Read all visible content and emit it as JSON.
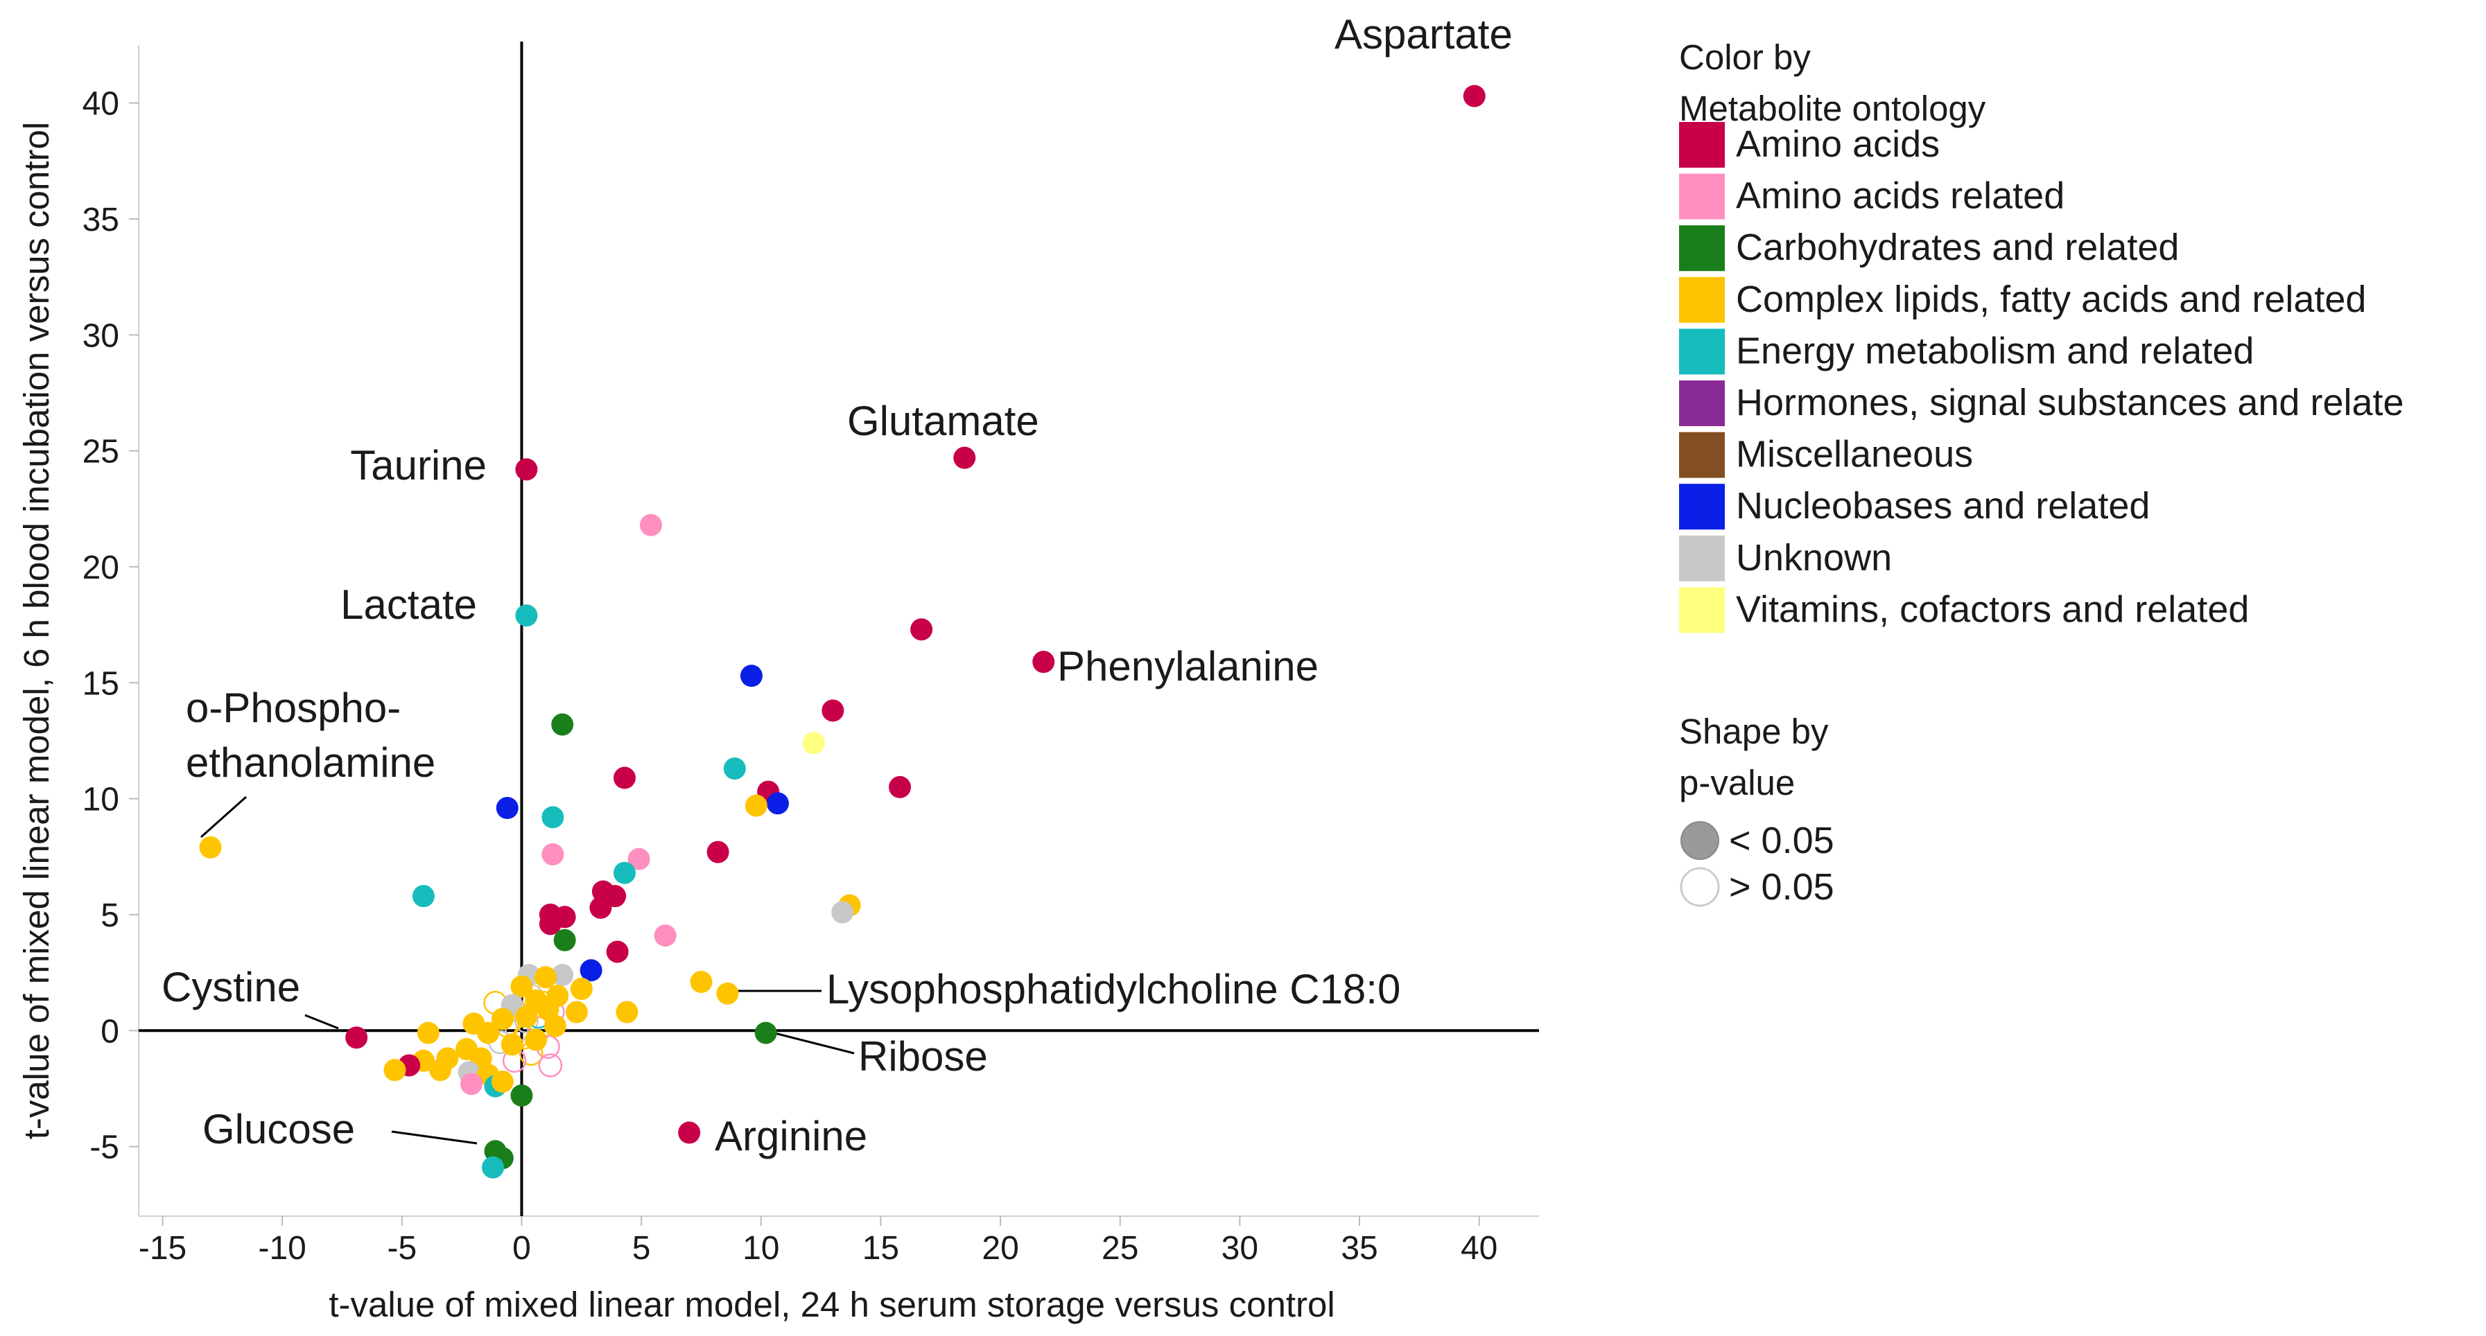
{
  "chart_data": {
    "type": "scatter",
    "xlabel": "t-value of mixed linear model, 24 h serum storage versus control",
    "ylabel": "t-value of mixed linear model, 6 h blood incubation versus control",
    "xlim": [
      -16,
      42.5
    ],
    "ylim": [
      -8,
      42.5
    ],
    "xticks": [
      -15,
      -10,
      -5,
      0,
      5,
      10,
      15,
      20,
      25,
      30,
      35,
      40
    ],
    "yticks": [
      -5,
      0,
      5,
      10,
      15,
      20,
      25,
      30,
      35,
      40
    ],
    "grid": false,
    "legend_color": {
      "title_lines": [
        "Color by",
        "Metabolite ontology"
      ],
      "items": [
        {
          "key": "aa",
          "label": "Amino acids",
          "color": "#c8004a"
        },
        {
          "key": "aar",
          "label": "Amino acids related",
          "color": "#ff8fbf"
        },
        {
          "key": "carb",
          "label": "Carbohydrates and related",
          "color": "#1a7f1a"
        },
        {
          "key": "lip",
          "label": "Complex lipids, fatty acids and related",
          "color": "#ffc400"
        },
        {
          "key": "en",
          "label": "Energy metabolism and related",
          "color": "#17bcbc"
        },
        {
          "key": "hor",
          "label": "Hormones, signal substances and relate",
          "color": "#8a2b96"
        },
        {
          "key": "misc",
          "label": "Miscellaneous",
          "color": "#834f22"
        },
        {
          "key": "nuc",
          "label": "Nucleobases and related",
          "color": "#0a1fe6"
        },
        {
          "key": "unk",
          "label": "Unknown",
          "color": "#c8c8c8"
        },
        {
          "key": "vit",
          "label": "Vitamins, cofactors and related",
          "color": "#ffff80"
        }
      ]
    },
    "legend_shape": {
      "title_lines": [
        "Shape by",
        "p-value"
      ],
      "items": [
        {
          "label": "< 0.05",
          "filled": true,
          "color": "#999999"
        },
        {
          "label": "> 0.05",
          "filled": false,
          "color": "#cccccc"
        }
      ]
    },
    "points": [
      {
        "x": 39.8,
        "y": 40.3,
        "cat": "aa",
        "sig": true,
        "label": "Aspartate"
      },
      {
        "x": 18.5,
        "y": 24.7,
        "cat": "aa",
        "sig": true,
        "label": "Glutamate"
      },
      {
        "x": 0.2,
        "y": 24.2,
        "cat": "aa",
        "sig": true,
        "label": "Taurine"
      },
      {
        "x": 0.2,
        "y": 17.9,
        "cat": "en",
        "sig": true,
        "label": "Lactate"
      },
      {
        "x": 21.8,
        "y": 15.9,
        "cat": "aa",
        "sig": true,
        "label": "Phenylalanine"
      },
      {
        "x": -13.0,
        "y": 7.9,
        "cat": "lip",
        "sig": true,
        "label": "o-Phospho-ethanolamine"
      },
      {
        "x": 8.6,
        "y": 1.6,
        "cat": "lip",
        "sig": true,
        "label": "Lysophosphatidylcholine C18:0"
      },
      {
        "x": -6.9,
        "y": -0.3,
        "cat": "aa",
        "sig": true,
        "label": "Cystine"
      },
      {
        "x": 10.2,
        "y": -0.1,
        "cat": "carb",
        "sig": true,
        "label": "Ribose"
      },
      {
        "x": 7.0,
        "y": -4.4,
        "cat": "aa",
        "sig": true,
        "label": "Arginine"
      },
      {
        "x": -1.1,
        "y": -5.2,
        "cat": "carb",
        "sig": true,
        "label": "Glucose"
      },
      {
        "x": -0.8,
        "y": -5.5,
        "cat": "carb",
        "sig": true
      },
      {
        "x": -1.2,
        "y": -5.9,
        "cat": "en",
        "sig": true
      },
      {
        "x": 5.4,
        "y": 21.8,
        "cat": "aar",
        "sig": true
      },
      {
        "x": 16.7,
        "y": 17.3,
        "cat": "aa",
        "sig": true
      },
      {
        "x": 9.6,
        "y": 15.3,
        "cat": "nuc",
        "sig": true
      },
      {
        "x": 13.0,
        "y": 13.8,
        "cat": "aa",
        "sig": true
      },
      {
        "x": 1.7,
        "y": 13.2,
        "cat": "carb",
        "sig": true
      },
      {
        "x": 12.2,
        "y": 12.4,
        "cat": "vit",
        "sig": true
      },
      {
        "x": 8.9,
        "y": 11.3,
        "cat": "en",
        "sig": true
      },
      {
        "x": 4.3,
        "y": 10.9,
        "cat": "aa",
        "sig": true
      },
      {
        "x": 15.8,
        "y": 10.5,
        "cat": "aa",
        "sig": true
      },
      {
        "x": 10.3,
        "y": 10.3,
        "cat": "aa",
        "sig": true
      },
      {
        "x": 10.7,
        "y": 9.8,
        "cat": "nuc",
        "sig": true
      },
      {
        "x": 9.8,
        "y": 9.7,
        "cat": "lip",
        "sig": true
      },
      {
        "x": -0.6,
        "y": 9.6,
        "cat": "nuc",
        "sig": true
      },
      {
        "x": 1.3,
        "y": 9.2,
        "cat": "en",
        "sig": true
      },
      {
        "x": 8.2,
        "y": 7.7,
        "cat": "aa",
        "sig": true
      },
      {
        "x": 1.3,
        "y": 7.6,
        "cat": "aar",
        "sig": true
      },
      {
        "x": 4.9,
        "y": 7.4,
        "cat": "aar",
        "sig": true
      },
      {
        "x": 4.3,
        "y": 6.8,
        "cat": "en",
        "sig": true
      },
      {
        "x": 3.4,
        "y": 6.0,
        "cat": "aa",
        "sig": true
      },
      {
        "x": 3.9,
        "y": 5.8,
        "cat": "aa",
        "sig": true
      },
      {
        "x": -4.1,
        "y": 5.8,
        "cat": "en",
        "sig": true
      },
      {
        "x": 3.3,
        "y": 5.3,
        "cat": "aa",
        "sig": true
      },
      {
        "x": 13.7,
        "y": 5.4,
        "cat": "lip",
        "sig": true
      },
      {
        "x": 13.4,
        "y": 5.1,
        "cat": "unk",
        "sig": true
      },
      {
        "x": 1.2,
        "y": 5.0,
        "cat": "aa",
        "sig": true
      },
      {
        "x": 1.8,
        "y": 4.9,
        "cat": "aa",
        "sig": true
      },
      {
        "x": 1.2,
        "y": 4.6,
        "cat": "aa",
        "sig": true
      },
      {
        "x": 6.0,
        "y": 4.1,
        "cat": "aar",
        "sig": true
      },
      {
        "x": 1.8,
        "y": 3.9,
        "cat": "carb",
        "sig": true
      },
      {
        "x": 4.0,
        "y": 3.4,
        "cat": "aa",
        "sig": true
      },
      {
        "x": 2.9,
        "y": 2.6,
        "cat": "nuc",
        "sig": true
      },
      {
        "x": 7.5,
        "y": 2.1,
        "cat": "lip",
        "sig": true
      },
      {
        "x": 4.4,
        "y": 0.8,
        "cat": "lip",
        "sig": true
      },
      {
        "x": 2.5,
        "y": 1.8,
        "cat": "lip",
        "sig": true
      },
      {
        "x": 2.3,
        "y": 0.8,
        "cat": "lip",
        "sig": true
      },
      {
        "x": 1.7,
        "y": 2.4,
        "cat": "unk",
        "sig": true
      },
      {
        "x": 0.3,
        "y": 2.4,
        "cat": "unk",
        "sig": true
      },
      {
        "x": 1.0,
        "y": 2.3,
        "cat": "lip",
        "sig": true
      },
      {
        "x": 0.0,
        "y": 1.9,
        "cat": "lip",
        "sig": true
      },
      {
        "x": 1.5,
        "y": 1.5,
        "cat": "lip",
        "sig": true
      },
      {
        "x": 0.6,
        "y": 1.3,
        "cat": "lip",
        "sig": true
      },
      {
        "x": -0.4,
        "y": 1.1,
        "cat": "unk",
        "sig": true
      },
      {
        "x": 1.1,
        "y": 0.9,
        "cat": "lip",
        "sig": true
      },
      {
        "x": 0.2,
        "y": 0.6,
        "cat": "lip",
        "sig": true
      },
      {
        "x": -0.8,
        "y": 0.5,
        "cat": "lip",
        "sig": true
      },
      {
        "x": 1.4,
        "y": 0.2,
        "cat": "lip",
        "sig": true
      },
      {
        "x": -2.0,
        "y": 0.3,
        "cat": "lip",
        "sig": true
      },
      {
        "x": -1.4,
        "y": -0.1,
        "cat": "lip",
        "sig": true
      },
      {
        "x": -3.9,
        "y": -0.1,
        "cat": "lip",
        "sig": true
      },
      {
        "x": 0.6,
        "y": -0.4,
        "cat": "lip",
        "sig": true
      },
      {
        "x": -0.4,
        "y": -0.6,
        "cat": "lip",
        "sig": true
      },
      {
        "x": -2.3,
        "y": -0.8,
        "cat": "lip",
        "sig": true
      },
      {
        "x": -1.7,
        "y": -1.2,
        "cat": "lip",
        "sig": true
      },
      {
        "x": -3.1,
        "y": -1.2,
        "cat": "lip",
        "sig": true
      },
      {
        "x": -4.1,
        "y": -1.3,
        "cat": "lip",
        "sig": true
      },
      {
        "x": -4.7,
        "y": -1.5,
        "cat": "aa",
        "sig": true
      },
      {
        "x": -5.3,
        "y": -1.7,
        "cat": "lip",
        "sig": true
      },
      {
        "x": -3.4,
        "y": -1.7,
        "cat": "lip",
        "sig": true
      },
      {
        "x": -2.2,
        "y": -1.8,
        "cat": "unk",
        "sig": true
      },
      {
        "x": -1.4,
        "y": -1.9,
        "cat": "lip",
        "sig": true
      },
      {
        "x": -2.1,
        "y": -2.3,
        "cat": "aar",
        "sig": true
      },
      {
        "x": -1.1,
        "y": -2.4,
        "cat": "en",
        "sig": true
      },
      {
        "x": -0.8,
        "y": -2.2,
        "cat": "lip",
        "sig": true
      },
      {
        "x": 0.0,
        "y": -2.8,
        "cat": "carb",
        "sig": true
      },
      {
        "x": 0.4,
        "y": 1.5,
        "cat": "unk",
        "sig": false
      },
      {
        "x": 0.9,
        "y": 1.2,
        "cat": "lip",
        "sig": false
      },
      {
        "x": -0.3,
        "y": 0.9,
        "cat": "lip",
        "sig": false
      },
      {
        "x": 1.3,
        "y": 0.8,
        "cat": "aar",
        "sig": false
      },
      {
        "x": 0.2,
        "y": 0.4,
        "cat": "unk",
        "sig": false
      },
      {
        "x": -0.6,
        "y": 0.2,
        "cat": "lip",
        "sig": false
      },
      {
        "x": 0.8,
        "y": 0.1,
        "cat": "aar",
        "sig": false
      },
      {
        "x": 0.1,
        "y": -0.3,
        "cat": "lip",
        "sig": false
      },
      {
        "x": -0.9,
        "y": -0.5,
        "cat": "unk",
        "sig": false
      },
      {
        "x": 1.1,
        "y": -0.7,
        "cat": "aar",
        "sig": false
      },
      {
        "x": 0.4,
        "y": -1.0,
        "cat": "lip",
        "sig": false
      },
      {
        "x": -0.3,
        "y": -1.3,
        "cat": "aar",
        "sig": false
      },
      {
        "x": 1.2,
        "y": -1.5,
        "cat": "aar",
        "sig": false
      },
      {
        "x": -1.1,
        "y": 1.2,
        "cat": "lip",
        "sig": false
      },
      {
        "x": 0.7,
        "y": 0.6,
        "cat": "en",
        "sig": false
      },
      {
        "x": -0.2,
        "y": 0.0,
        "cat": "unk",
        "sig": false
      }
    ]
  }
}
